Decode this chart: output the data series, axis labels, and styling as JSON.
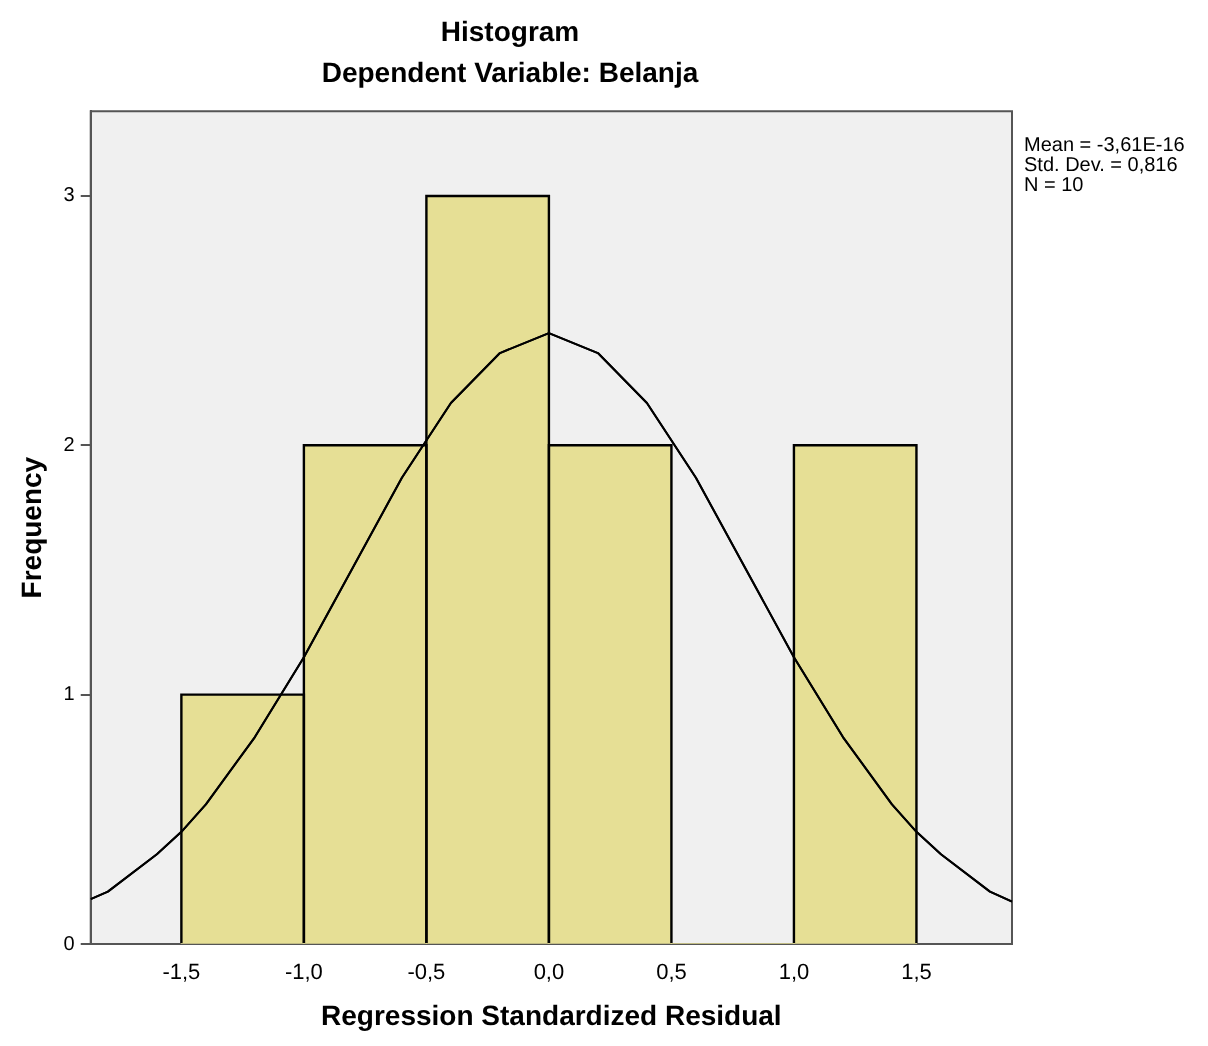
{
  "chart_data": {
    "type": "histogram",
    "title": "Histogram",
    "subtitle": "Dependent Variable: Belanja",
    "xlabel": "Regression Standardized Residual",
    "ylabel": "Frequency",
    "bins": [
      -1.5,
      -1.0,
      -0.5,
      0.0,
      0.5,
      1.0,
      1.5
    ],
    "values": [
      1,
      2,
      3,
      2,
      0,
      2
    ],
    "color": "#e6df95",
    "series": [
      {
        "type": "line",
        "color": "#000000",
        "x": [
          -1.87,
          -1.8,
          -1.6,
          -1.5,
          -1.4,
          -1.2,
          -1.0,
          -0.8,
          -0.6,
          -0.4,
          -0.2,
          0.0,
          0.2,
          0.4,
          0.6,
          0.8,
          1.0,
          1.2,
          1.4,
          1.5,
          1.6,
          1.8,
          1.89
        ],
        "values": [
          0.18,
          0.21,
          0.36,
          0.45,
          0.56,
          0.83,
          1.15,
          1.51,
          1.87,
          2.17,
          2.37,
          2.45,
          2.37,
          2.17,
          1.87,
          1.51,
          1.15,
          0.83,
          0.56,
          0.45,
          0.36,
          0.21,
          0.17
        ]
      }
    ],
    "xlim": [
      -1.87,
      1.89
    ],
    "xticks": [
      {
        "value": -1.5,
        "label": "-1,5"
      },
      {
        "value": -1.0,
        "label": "-1,0"
      },
      {
        "value": -0.5,
        "label": "-0,5"
      },
      {
        "value": 0.0,
        "label": "0,0"
      },
      {
        "value": 0.5,
        "label": "0,5"
      },
      {
        "value": 1.0,
        "label": "1,0"
      },
      {
        "value": 1.5,
        "label": "1,5"
      }
    ],
    "ylim": [
      0,
      3.34
    ],
    "yticks": [
      0,
      1,
      2,
      3
    ],
    "grid": false,
    "legend": false,
    "annotations": [
      "Mean = -3,61E-16",
      "Std. Dev. = 0,816",
      "N = 10"
    ]
  }
}
